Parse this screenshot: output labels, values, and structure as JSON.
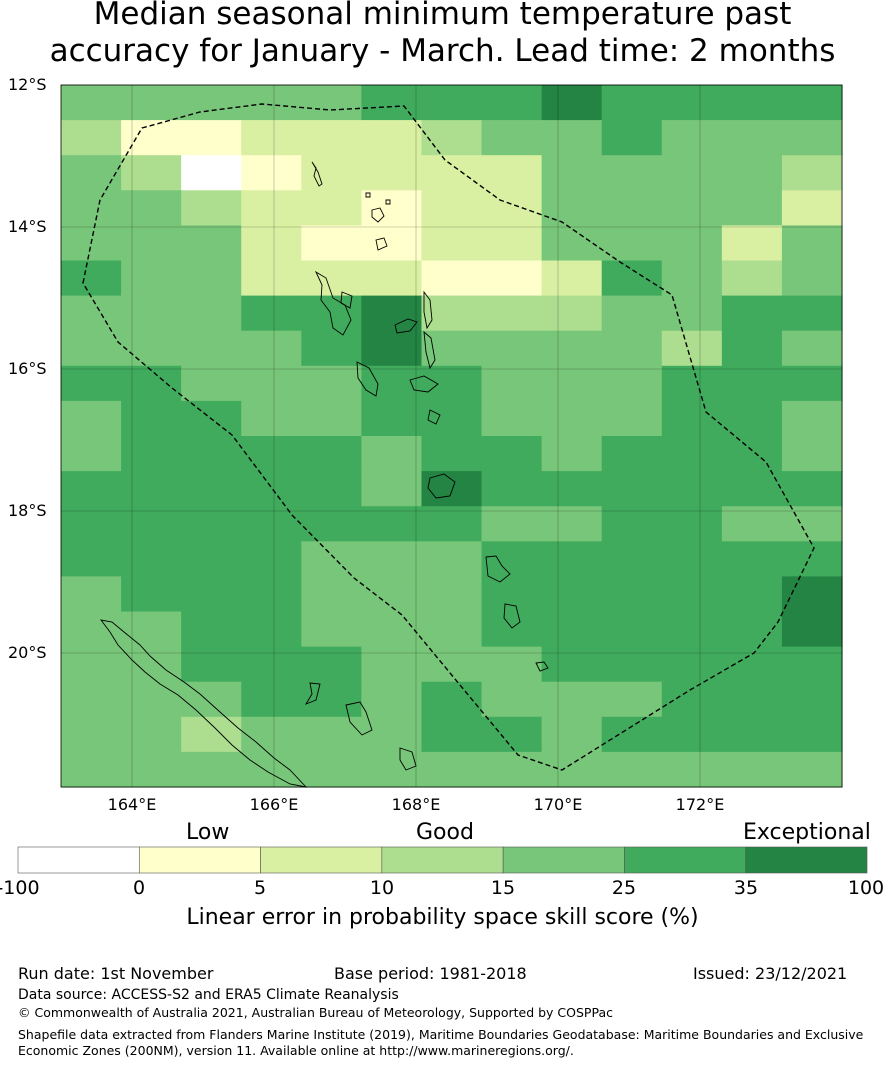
{
  "title_lines": [
    "Median seasonal minimum temperature past",
    "accuracy for January - March. Lead time: 2 months"
  ],
  "lat_labels": [
    "12°S",
    "14°S",
    "16°S",
    "18°S",
    "20°S"
  ],
  "lon_labels": [
    "164°E",
    "166°E",
    "168°E",
    "170°E",
    "172°E"
  ],
  "legend": {
    "categories": [
      "Low",
      "Good",
      "Exceptional"
    ],
    "ticks": [
      "-100",
      "0",
      "5",
      "10",
      "15",
      "25",
      "35",
      "100"
    ],
    "colors": [
      "#ffffff",
      "#ffffcc",
      "#d9f0a3",
      "#addd8e",
      "#78c679",
      "#41ab5d",
      "#238443"
    ],
    "label": "Linear error in probability space skill score (%)"
  },
  "grid_rows": [
    "4444455565555",
    "3112223445444",
    "4301222244443",
    "4432212244442",
    "4442112244424",
    "5442221125434",
    "4445563334455",
    "4444564444354",
    "5544455444555",
    "4554455444554",
    "4555545545554",
    "5555546555555",
    "5555555445544",
    "5555444555555",
    "4555444555556",
    "4455444555556",
    "4455544455555",
    "4445545444555",
    "4434445545555",
    "4444444444444"
  ],
  "footer": {
    "run_date": "Run date: 1st November",
    "base_period": "Base period: 1981-2018",
    "issued": "Issued: 23/12/2021",
    "data_source": "Data source: ACCESS-S2 and ERA5 Climate Reanalysis",
    "copyright": "© Commonwealth of Australia 2021, Australian Bureau of Meteorology, Supported by COSPPac",
    "shapefile_line1": "Shapefile data extracted from Flanders Marine Institute (2019), Maritime Boundaries Geodatabase: Maritime Boundaries and Exclusive",
    "shapefile_line2": "Economic Zones (200NM), version 11. Available online at http://www.marineregions.org/."
  }
}
